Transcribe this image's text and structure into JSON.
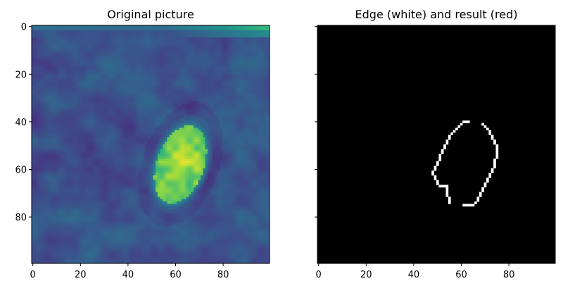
{
  "chart_data": [
    {
      "type": "heatmap",
      "title": "Original picture",
      "xlabel": "",
      "ylabel": "",
      "xlim": [
        0,
        99
      ],
      "ylim": [
        99,
        0
      ],
      "x_ticks": [
        0,
        20,
        40,
        60,
        80
      ],
      "y_ticks": [
        0,
        20,
        40,
        60,
        80
      ],
      "colormap": "viridis",
      "features": [
        {
          "kind": "bright-ellipse",
          "center": [
            62,
            58
          ],
          "semi_axes": [
            10,
            17
          ],
          "rotation_deg": 20,
          "value": 0.92
        },
        {
          "kind": "bright-band",
          "x_range": [
            55,
            99
          ],
          "y_range": [
            0,
            3
          ],
          "value": 0.75
        }
      ],
      "background_value": 0.33
    },
    {
      "type": "heatmap",
      "title": "Edge (white) and result (red)",
      "xlabel": "",
      "ylabel": "",
      "xlim": [
        0,
        99
      ],
      "ylim": [
        99,
        0
      ],
      "x_ticks": [
        0,
        20,
        40,
        60,
        80
      ],
      "y_ticks": [
        0,
        20,
        40,
        60,
        80
      ],
      "background_color": "#000000",
      "edge_color": "#ffffff",
      "edge_points": [
        [
          61,
          40
        ],
        [
          62,
          40
        ],
        [
          63,
          40
        ],
        [
          60,
          41
        ],
        [
          59,
          42
        ],
        [
          58,
          43
        ],
        [
          57,
          44
        ],
        [
          56,
          45
        ],
        [
          55,
          46
        ],
        [
          55,
          47
        ],
        [
          54,
          48
        ],
        [
          54,
          49
        ],
        [
          53,
          50
        ],
        [
          53,
          51
        ],
        [
          52,
          52
        ],
        [
          52,
          53
        ],
        [
          51,
          54
        ],
        [
          51,
          55
        ],
        [
          51,
          56
        ],
        [
          50,
          57
        ],
        [
          50,
          58
        ],
        [
          49,
          59
        ],
        [
          49,
          60
        ],
        [
          48,
          61
        ],
        [
          48,
          62
        ],
        [
          49,
          63
        ],
        [
          49,
          64
        ],
        [
          50,
          65
        ],
        [
          50,
          66
        ],
        [
          51,
          67
        ],
        [
          52,
          67
        ],
        [
          53,
          67
        ],
        [
          54,
          67
        ],
        [
          54,
          68
        ],
        [
          54,
          69
        ],
        [
          54,
          70
        ],
        [
          54,
          71
        ],
        [
          55,
          72
        ],
        [
          55,
          73
        ],
        [
          55,
          74
        ],
        [
          69,
          41
        ],
        [
          70,
          42
        ],
        [
          71,
          43
        ],
        [
          72,
          44
        ],
        [
          72,
          45
        ],
        [
          73,
          46
        ],
        [
          73,
          47
        ],
        [
          74,
          48
        ],
        [
          74,
          49
        ],
        [
          75,
          50
        ],
        [
          75,
          51
        ],
        [
          75,
          52
        ],
        [
          75,
          53
        ],
        [
          75,
          54
        ],
        [
          75,
          55
        ],
        [
          74,
          56
        ],
        [
          74,
          57
        ],
        [
          74,
          58
        ],
        [
          74,
          59
        ],
        [
          73,
          60
        ],
        [
          73,
          61
        ],
        [
          72,
          62
        ],
        [
          72,
          63
        ],
        [
          71,
          64
        ],
        [
          71,
          65
        ],
        [
          70,
          66
        ],
        [
          70,
          67
        ],
        [
          69,
          68
        ],
        [
          69,
          69
        ],
        [
          68,
          70
        ],
        [
          68,
          71
        ],
        [
          67,
          72
        ],
        [
          67,
          73
        ],
        [
          66,
          74
        ],
        [
          65,
          75
        ],
        [
          64,
          75
        ],
        [
          63,
          75
        ],
        [
          62,
          75
        ],
        [
          61,
          75
        ]
      ]
    }
  ],
  "colors": {
    "viridis_low": "#440154",
    "viridis_mid": "#21918c",
    "viridis_high": "#fde725",
    "edge": "#ffffff",
    "background": "#000000"
  }
}
